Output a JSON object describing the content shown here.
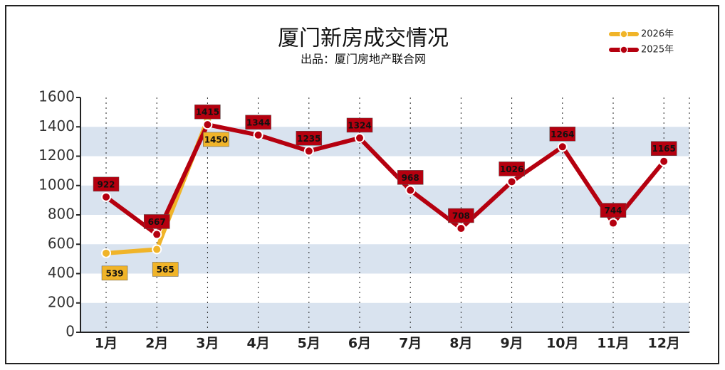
{
  "chart_data": {
    "type": "line",
    "title": "厦门新房成交情况",
    "subtitle": "出品：厦门房地产联合网",
    "categories": [
      "1月",
      "2月",
      "3月",
      "4月",
      "5月",
      "6月",
      "7月",
      "8月",
      "9月",
      "10月",
      "11月",
      "12月"
    ],
    "series": [
      {
        "name": "2026年",
        "color": "#f0b429",
        "values": [
          539,
          565,
          1450,
          null,
          null,
          null,
          null,
          null,
          null,
          null,
          null,
          null
        ]
      },
      {
        "name": "2025年",
        "color": "#b5000f",
        "values": [
          922,
          667,
          1415,
          1344,
          1235,
          1324,
          968,
          708,
          1026,
          1264,
          744,
          1165
        ]
      }
    ],
    "ylim": [
      0,
      1600
    ],
    "yticks": [
      0,
      200,
      400,
      600,
      800,
      1000,
      1200,
      1400,
      1600
    ],
    "band_color": "#d9e3ef",
    "legend": "top-right"
  }
}
